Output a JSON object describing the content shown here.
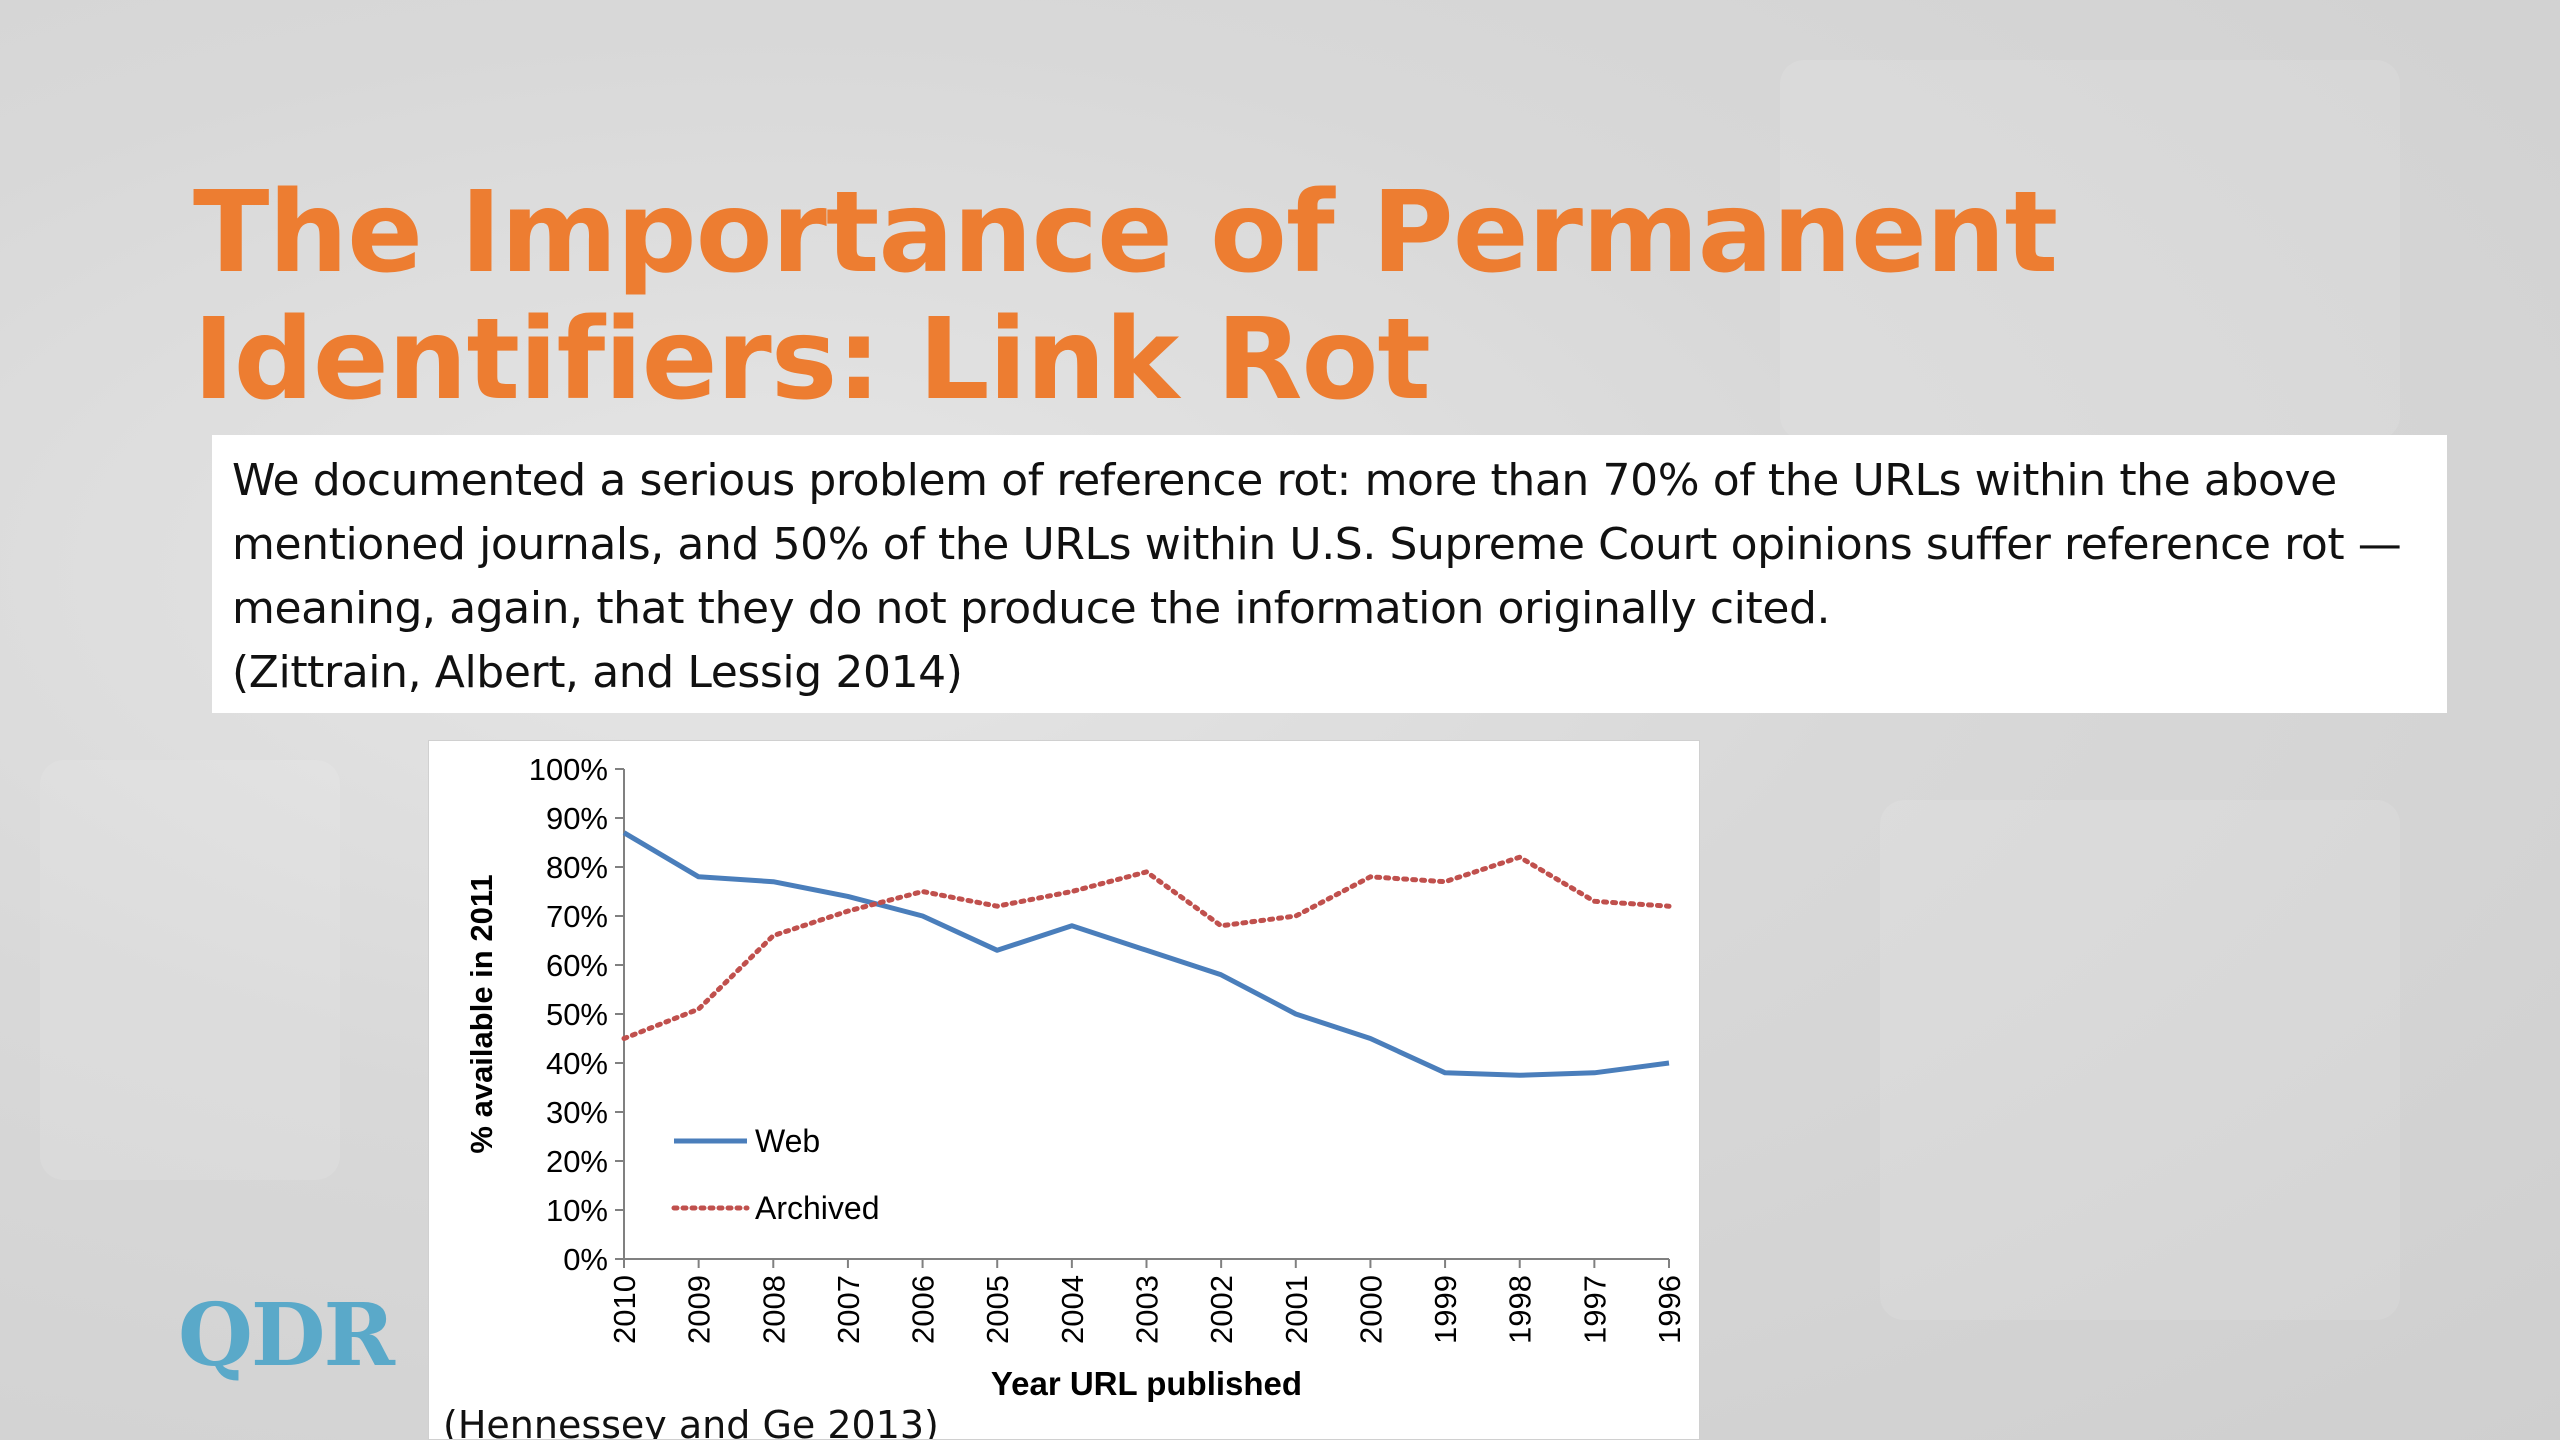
{
  "slide": {
    "title_lines": [
      "The Importance of Permanent",
      "Identifiers: Link Rot"
    ],
    "quote_lines": [
      "We documented a serious problem of reference rot: more than 70% of the URLs within the above",
      "mentioned journals, and 50% of the URLs within U.S. Supreme Court opinions suffer reference rot —",
      "meaning, again, that they do not produce the information originally cited.",
      "(Zittrain, Albert, and Lessig 2014)"
    ],
    "chart_source": "(Hennessey and Ge 2013)",
    "logo_text": "QDR"
  },
  "colors": {
    "title": "#ed7d31",
    "web_series": "#4a7ebb",
    "archived_series": "#c0504d",
    "logo": "#5aa9c9"
  },
  "chart_data": {
    "type": "line",
    "title": "",
    "xlabel": "Year URL published",
    "ylabel": "% available in 2011",
    "categories": [
      "2010",
      "2009",
      "2008",
      "2007",
      "2006",
      "2005",
      "2004",
      "2003",
      "2002",
      "2001",
      "2000",
      "1999",
      "1998",
      "1997",
      "1996"
    ],
    "y_ticks": [
      "0%",
      "10%",
      "20%",
      "30%",
      "40%",
      "50%",
      "60%",
      "70%",
      "80%",
      "90%",
      "100%"
    ],
    "ylim": [
      0,
      100
    ],
    "y_unit": "%",
    "grid": false,
    "legend_position": "bottom-left",
    "series": [
      {
        "name": "Web",
        "style": "solid",
        "color": "#4a7ebb",
        "values": [
          87,
          78,
          77,
          74,
          70,
          63,
          68,
          63,
          58,
          50,
          45,
          38,
          37.5,
          38,
          40
        ]
      },
      {
        "name": "Archived",
        "style": "dotted",
        "color": "#c0504d",
        "values": [
          45,
          51,
          66,
          71,
          75,
          72,
          75,
          79,
          68,
          70,
          78,
          77,
          82,
          73,
          72
        ]
      }
    ]
  }
}
